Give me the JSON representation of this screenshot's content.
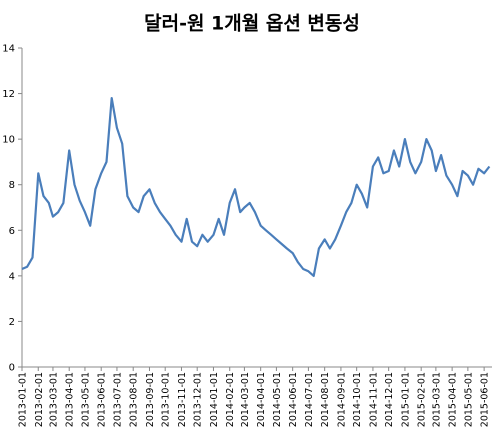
{
  "chart_data": {
    "type": "line",
    "title": "달러-원 1개월 옵션 변동성",
    "x": [
      "2013-01-01",
      "2013-01-11",
      "2013-01-21",
      "2013-02-01",
      "2013-02-11",
      "2013-02-21",
      "2013-03-01",
      "2013-03-11",
      "2013-03-21",
      "2013-04-01",
      "2013-04-11",
      "2013-04-21",
      "2013-05-01",
      "2013-05-11",
      "2013-05-21",
      "2013-06-01",
      "2013-06-11",
      "2013-06-21",
      "2013-07-01",
      "2013-07-11",
      "2013-07-21",
      "2013-08-01",
      "2013-08-11",
      "2013-08-21",
      "2013-09-01",
      "2013-09-11",
      "2013-09-21",
      "2013-10-01",
      "2013-10-11",
      "2013-10-21",
      "2013-11-01",
      "2013-11-11",
      "2013-11-21",
      "2013-12-01",
      "2013-12-11",
      "2013-12-21",
      "2014-01-01",
      "2014-01-11",
      "2014-01-21",
      "2014-02-01",
      "2014-02-11",
      "2014-02-21",
      "2014-03-01",
      "2014-03-11",
      "2014-03-21",
      "2014-04-01",
      "2014-04-11",
      "2014-04-21",
      "2014-05-01",
      "2014-05-11",
      "2014-05-21",
      "2014-06-01",
      "2014-06-11",
      "2014-06-21",
      "2014-07-01",
      "2014-07-11",
      "2014-07-21",
      "2014-08-01",
      "2014-08-11",
      "2014-08-21",
      "2014-09-01",
      "2014-09-11",
      "2014-09-21",
      "2014-10-01",
      "2014-10-11",
      "2014-10-21",
      "2014-11-01",
      "2014-11-11",
      "2014-11-21",
      "2014-12-01",
      "2014-12-11",
      "2014-12-21",
      "2015-01-01",
      "2015-01-11",
      "2015-01-21",
      "2015-02-01",
      "2015-02-11",
      "2015-02-21",
      "2015-03-01",
      "2015-03-11",
      "2015-03-21",
      "2015-04-01",
      "2015-04-11",
      "2015-04-21",
      "2015-05-01",
      "2015-05-11",
      "2015-05-21",
      "2015-06-01",
      "2015-06-11"
    ],
    "series": [
      {
        "color": "#4a7ebb",
        "values": [
          4.3,
          4.4,
          4.8,
          8.5,
          7.5,
          7.2,
          6.6,
          6.8,
          7.2,
          9.5,
          8.0,
          7.3,
          6.8,
          6.2,
          7.8,
          8.5,
          9.0,
          11.8,
          10.5,
          9.8,
          7.5,
          7.0,
          6.8,
          7.5,
          7.8,
          7.2,
          6.8,
          6.5,
          6.2,
          5.8,
          5.5,
          6.5,
          5.5,
          5.3,
          5.8,
          5.5,
          5.8,
          6.5,
          5.8,
          7.2,
          7.8,
          6.8,
          7.0,
          7.2,
          6.8,
          6.2,
          6.0,
          5.8,
          5.6,
          5.4,
          5.2,
          5.0,
          4.6,
          4.3,
          4.2,
          4.0,
          5.2,
          5.6,
          5.2,
          5.6,
          6.2,
          6.8,
          7.2,
          8.0,
          7.6,
          7.0,
          8.8,
          9.2,
          8.5,
          8.6,
          9.5,
          8.8,
          10.0,
          9.0,
          8.5,
          9.0,
          10.0,
          9.5,
          8.6,
          9.3,
          8.4,
          8.0,
          7.5,
          8.6,
          8.4,
          8.0,
          8.7,
          8.5,
          8.8
        ]
      }
    ],
    "xlim": [
      "2013-01-01",
      "2015-06-16"
    ],
    "xticks": [
      "2013-01-01",
      "2013-02-01",
      "2013-03-01",
      "2013-04-01",
      "2013-05-01",
      "2013-06-01",
      "2013-07-01",
      "2013-08-01",
      "2013-09-01",
      "2013-10-01",
      "2013-11-01",
      "2013-12-01",
      "2014-01-01",
      "2014-02-01",
      "2014-03-01",
      "2014-04-01",
      "2014-05-01",
      "2014-06-01",
      "2014-07-01",
      "2014-08-01",
      "2014-09-01",
      "2014-10-01",
      "2014-11-01",
      "2014-12-01",
      "2015-01-01",
      "2015-02-01",
      "2015-03-01",
      "2015-04-01",
      "2015-05-01",
      "2015-06-01"
    ],
    "ylim": [
      0,
      14
    ],
    "yticks": [
      0,
      2,
      4,
      6,
      8,
      10,
      12,
      14
    ]
  }
}
